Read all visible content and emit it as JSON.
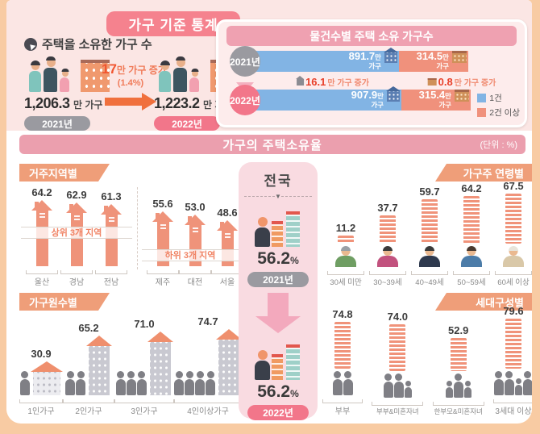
{
  "ui": {
    "header": {
      "title": "가구 기준 통계",
      "subtitle": "주택을 소유한 가구 수",
      "before": {
        "value": "1,206.3",
        "unit": "만 가구",
        "year": "2021년"
      },
      "increase": {
        "value": "17",
        "label": "만 가구 증가",
        "percent": "(1.4%)"
      },
      "after": {
        "value": "1,223.2",
        "unit": "만 가구",
        "year": "2022년"
      }
    },
    "panel": {
      "title": "물건수별 주택 소유 가구수",
      "value_suffix": "만",
      "unit_word": "가구",
      "changes": [
        {
          "value": "16.1",
          "label": "만 가구 증가",
          "icon": "house-icon"
        },
        {
          "value": "0.8",
          "label": "만 가구 증가",
          "icon": "building-icon"
        }
      ],
      "legend": [
        {
          "label": "1건",
          "color": "#82b4e4"
        },
        {
          "label": "2건 이상",
          "color": "#f0917c"
        }
      ]
    },
    "banner": {
      "title": "가구의 주택소유율",
      "unit": "(단위 : %)"
    },
    "sections": {
      "region": {
        "title": "거주지역별",
        "band_top": "상위 3개 지역",
        "band_bottom": "하위 3개 지역"
      },
      "age": {
        "title": "가구주 연령별"
      },
      "size": {
        "title": "가구원수별"
      },
      "generation": {
        "title": "세대구성별"
      }
    },
    "national": {
      "title": "전국",
      "items": [
        {
          "value": "56.2",
          "unit": "%",
          "year": "2021년",
          "pill": "gray"
        },
        {
          "value": "56.2",
          "unit": "%",
          "year": "2022년",
          "pill": "pink"
        }
      ]
    },
    "colors": {
      "accent_pink": "#f5828e",
      "banner_pink": "#eb9fae",
      "tab_orange": "#ef9e79",
      "bar_salmon": "#ef937a",
      "bar_blue": "#82b4e4",
      "bar_orange": "#f0917c",
      "year_gray": "#9a9aa0",
      "year_pink": "#f2768a",
      "frame_peach": "#f8cba3"
    }
  },
  "chart_data": [
    {
      "type": "bar",
      "title": "물건수별 주택 소유 가구수",
      "categories": [
        "2021년",
        "2022년"
      ],
      "series": [
        {
          "name": "1건",
          "values": [
            891.7,
            907.9
          ]
        },
        {
          "name": "2건 이상",
          "values": [
            314.5,
            315.4
          ]
        }
      ],
      "unit": "만 가구",
      "annotations": [
        "16.1만 가구 증가",
        "0.8만 가구 증가"
      ],
      "legend_position": "right"
    },
    {
      "type": "bar",
      "title": "전국 주택소유율",
      "categories": [
        "2021년",
        "2022년"
      ],
      "values": [
        56.2,
        56.2
      ],
      "unit": "%"
    },
    {
      "type": "bar",
      "title": "거주지역별",
      "unit": "%",
      "groups": [
        {
          "label": "상위 3개 지역",
          "categories": [
            "울산",
            "경남",
            "전남"
          ],
          "values": [
            64.2,
            62.9,
            61.3
          ]
        },
        {
          "label": "하위 3개 지역",
          "categories": [
            "제주",
            "대전",
            "서울"
          ],
          "values": [
            55.6,
            53.0,
            48.6
          ]
        }
      ]
    },
    {
      "type": "bar",
      "title": "가구주 연령별",
      "unit": "%",
      "categories": [
        "30세 미만",
        "30~39세",
        "40~49세",
        "50~59세",
        "60세 이상"
      ],
      "values": [
        11.2,
        37.7,
        59.7,
        64.2,
        67.5
      ],
      "icons": [
        {
          "name": "young-person-icon",
          "shirt": "#6f9e63",
          "hair": "#9aa0a6"
        },
        {
          "name": "woman-30s-icon",
          "shirt": "#c2527e",
          "hair": "#3a3a3a"
        },
        {
          "name": "man-40s-icon",
          "shirt": "#2f3a4e",
          "hair": "#3a3a3a"
        },
        {
          "name": "man-50s-icon",
          "shirt": "#4c7ca8",
          "hair": "#4a3a30"
        },
        {
          "name": "elder-woman-icon",
          "shirt": "#d9c8a8",
          "hair": "#e8e4da"
        }
      ]
    },
    {
      "type": "bar",
      "title": "가구원수별",
      "unit": "%",
      "categories": [
        "1인가구",
        "2인가구",
        "3인가구",
        "4인이상가구"
      ],
      "values": [
        30.9,
        65.2,
        71.0,
        74.7
      ],
      "person_counts": [
        1,
        2,
        3,
        4
      ]
    },
    {
      "type": "bar",
      "title": "세대구성별",
      "unit": "%",
      "categories": [
        "부부",
        "부부&미혼자녀",
        "한부모&미혼자녀",
        "3세대 이상"
      ],
      "values": [
        74.8,
        74.0,
        52.9,
        79.6
      ],
      "icons": [
        {
          "figures": [
            "adult",
            "adult"
          ]
        },
        {
          "figures": [
            "adult",
            "adult",
            "child"
          ]
        },
        {
          "figures": [
            "child",
            "adult",
            "child"
          ]
        },
        {
          "figures": [
            "adult",
            "adult",
            "child",
            "adult"
          ]
        }
      ]
    }
  ]
}
